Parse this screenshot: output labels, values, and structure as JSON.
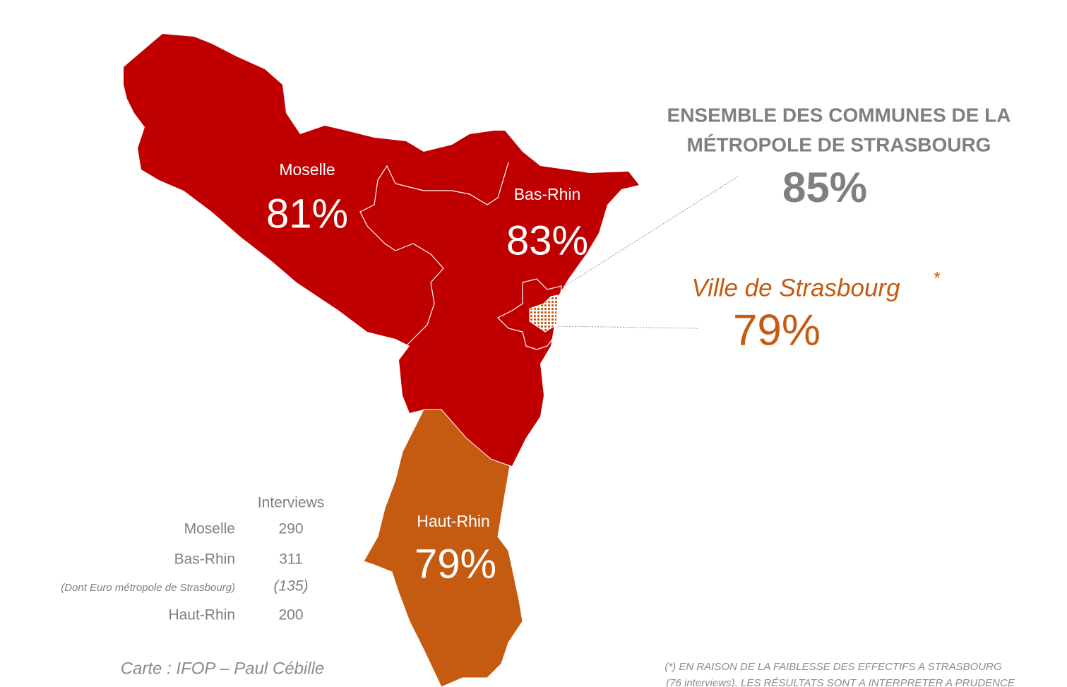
{
  "regions": [
    {
      "name": "Moselle",
      "value": "81%"
    },
    {
      "name": "Bas-Rhin",
      "value": "83%"
    },
    {
      "name": "Haut-Rhin",
      "value": "79%"
    }
  ],
  "metropole": {
    "title_lines": [
      "ENSEMBLE DES COMMUNES DE LA",
      "MÉTROPOLE DE STRASBOURG"
    ],
    "value": "85%"
  },
  "ville": {
    "name": "Ville de Strasbourg",
    "asterisk": "*",
    "value": "79%"
  },
  "interviews": {
    "header": "Interviews",
    "rows": [
      [
        "Moselle",
        "290"
      ],
      [
        "Bas-Rhin",
        "311"
      ],
      [
        "(Dont Euro métropole de Strasbourg)",
        "(135)"
      ],
      [
        "Haut-Rhin",
        "200"
      ]
    ]
  },
  "source": "Carte : IFOP – Paul Cébille",
  "footnote": [
    "(*) EN RAISON DE LA FAIBLESSE DES EFFECTIFS A STRASBOURG",
    "(76 interviews), LES RÉSULTATS SONT A INTERPRETER A PRUDENCE"
  ]
}
